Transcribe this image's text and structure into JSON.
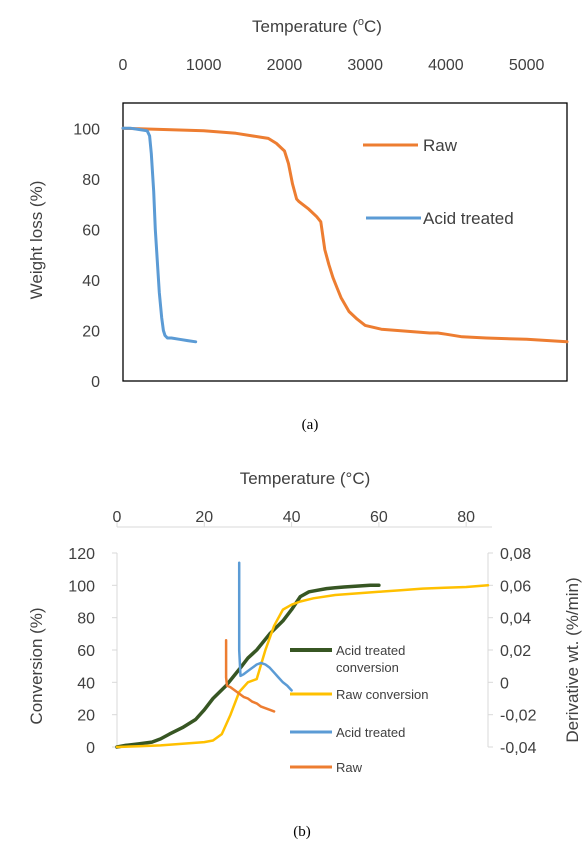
{
  "chart_data": [
    {
      "type": "line",
      "panel": "a",
      "caption": "(a)",
      "xlabel": "Temperature (°C)",
      "xlabel_main": "Temperature (",
      "xlabel_sup": "o",
      "xlabel_end": "C)",
      "ylabel": "Weight loss (%)",
      "xlim": [
        0,
        5500
      ],
      "ylim": [
        0,
        110
      ],
      "xticks": [
        "0",
        "1000",
        "2000",
        "3000",
        "4000",
        "5000"
      ],
      "yticks": [
        "0",
        "20",
        "40",
        "60",
        "80",
        "100"
      ],
      "legend_position": "right",
      "series": [
        {
          "name": "Raw",
          "color": "#ED7D31",
          "x": [
            0,
            500,
            1000,
            1400,
            1600,
            1700,
            1800,
            1900,
            2000,
            2050,
            2100,
            2150,
            2180,
            2220,
            2300,
            2400,
            2450,
            2500,
            2550,
            2600,
            2650,
            2700,
            2800,
            2900,
            3000,
            3200,
            3400,
            3600,
            3800,
            3900,
            4000,
            4200,
            4500,
            5000,
            5500
          ],
          "y": [
            100,
            99.5,
            99,
            98,
            97,
            96.5,
            96,
            94,
            91,
            86,
            78,
            72,
            71,
            70,
            68,
            65,
            63,
            52,
            46,
            41,
            37,
            33,
            27.5,
            24.5,
            22,
            20.5,
            20,
            19.5,
            19,
            19,
            18.5,
            17.5,
            17,
            16.5,
            15.5
          ]
        },
        {
          "name": "Acid treated",
          "color": "#5B9BD5",
          "x": [
            0,
            100,
            200,
            300,
            330,
            350,
            380,
            400,
            430,
            450,
            480,
            500,
            520,
            550,
            600,
            700,
            800,
            900
          ],
          "y": [
            100,
            100,
            99.5,
            99,
            97,
            90,
            75,
            60,
            45,
            35,
            25,
            20,
            18,
            17,
            17,
            16.5,
            16,
            15.5
          ]
        }
      ]
    },
    {
      "type": "line",
      "panel": "b",
      "caption": "(b)",
      "xlabel": "Temperature (°C)",
      "ylabel": "Conversion (%)",
      "ylabel_right": "Derivative wt. (%/min)",
      "xlim": [
        0,
        85
      ],
      "ylim": [
        0,
        120
      ],
      "ylim_right": [
        -0.04,
        0.08
      ],
      "xticks": [
        "0",
        "20",
        "40",
        "60",
        "80"
      ],
      "yticks": [
        "0",
        "20",
        "40",
        "60",
        "80",
        "100",
        "120"
      ],
      "yticks_right": [
        "-0,04",
        "-0,02",
        "0",
        "0,02",
        "0,04",
        "0,06",
        "0,08"
      ],
      "legend_position": "right",
      "series": [
        {
          "name": "Acid treated conversion",
          "legend_lines": [
            "Acid treated",
            "conversion"
          ],
          "color": "#375623",
          "axis": "left",
          "x": [
            0,
            2,
            5,
            8,
            10,
            12,
            15,
            18,
            20,
            22,
            25,
            28,
            30,
            32,
            35,
            38,
            40,
            42,
            44,
            46,
            48,
            50,
            52,
            55,
            58,
            60
          ],
          "y": [
            0,
            1,
            2,
            3,
            5,
            8,
            12,
            17,
            23,
            30,
            38,
            48,
            55,
            60,
            70,
            78,
            85,
            93,
            96,
            97,
            98,
            98.5,
            99,
            99.5,
            100,
            100
          ]
        },
        {
          "name": "Raw conversion",
          "color": "#FFC000",
          "axis": "left",
          "x": [
            0,
            5,
            10,
            15,
            20,
            22,
            24,
            26,
            28,
            30,
            32,
            34,
            36,
            38,
            40,
            42,
            45,
            50,
            55,
            60,
            65,
            70,
            75,
            80,
            85
          ],
          "y": [
            0,
            0.5,
            1,
            2,
            3,
            4,
            8,
            20,
            34,
            40,
            42,
            60,
            75,
            85,
            88,
            90,
            92,
            94,
            95,
            96,
            97,
            98,
            98.5,
            99,
            100
          ]
        },
        {
          "name": "Acid treated",
          "color": "#5B9BD5",
          "axis": "right",
          "x": [
            28,
            28,
            28.3,
            29,
            30,
            31,
            32,
            33,
            34,
            35,
            36,
            37,
            38,
            39,
            40
          ],
          "y": [
            0.074,
            0.02,
            0.004,
            0.005,
            0.007,
            0.009,
            0.011,
            0.012,
            0.011,
            0.009,
            0.006,
            0.003,
            0.0,
            -0.002,
            -0.005
          ]
        },
        {
          "name": "Raw",
          "color": "#ED7D31",
          "axis": "right",
          "x": [
            25,
            25,
            25.2,
            26,
            27,
            28,
            29,
            30,
            31,
            32,
            33,
            34,
            35,
            36
          ],
          "y": [
            0.026,
            0.003,
            -0.002,
            -0.003,
            -0.005,
            -0.007,
            -0.009,
            -0.01,
            -0.012,
            -0.013,
            -0.015,
            -0.016,
            -0.017,
            -0.018
          ]
        }
      ]
    }
  ]
}
